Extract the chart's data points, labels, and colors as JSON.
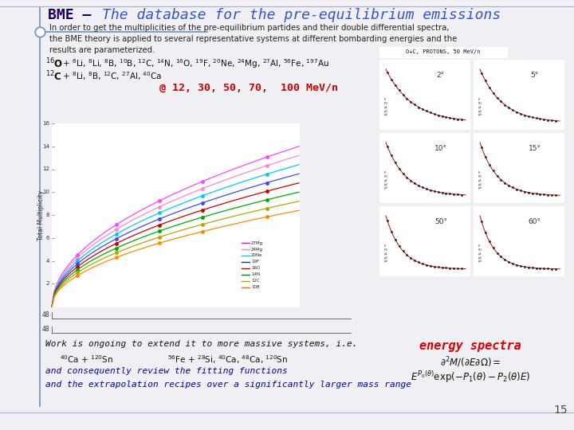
{
  "bg_color": "#f0f0f4",
  "left_bar_color": "#7090bb",
  "title_color_bme": "#1a0066",
  "title_color_rest": "#3355cc",
  "body_color": "#222222",
  "energy_color": "#cc0000",
  "fitting_italic_color": "#0000aa",
  "energy_spectra_color": "#dd0000",
  "formula_color": "#111111",
  "page_color": "#444444",
  "curve_colors": [
    "#ff44ff",
    "#ff88cc",
    "#00ccee",
    "#4444ff",
    "#cc0000",
    "#00aa00",
    "#aaaa00",
    "#ff8800"
  ],
  "mini_labels": [
    "2°",
    "5°",
    "10°",
    "15°",
    "50°",
    "60°"
  ],
  "legend_colors": [
    "#ff00ff",
    "#cc88ff",
    "#00ccdd",
    "#2222cc",
    "#cc0000",
    "#008800",
    "#aaaa00",
    "#ff6600"
  ],
  "legend_labels": [
    "27Mg",
    "24Mg",
    "20Ne",
    "19F",
    "16O",
    "14N",
    "12C",
    "10B"
  ]
}
